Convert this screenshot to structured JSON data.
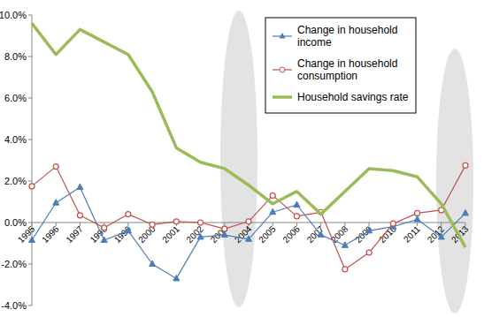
{
  "chart_data": {
    "type": "line",
    "categories": [
      "1995",
      "1996",
      "1997",
      "1998",
      "1999",
      "2000",
      "2001",
      "2002",
      "2003",
      "2004",
      "2005",
      "2006",
      "2007",
      "2008",
      "2009",
      "2010",
      "2011",
      "2012",
      "2013"
    ],
    "series": [
      {
        "name": "Change in household income",
        "color": "#4a7ebb",
        "marker": "triangle",
        "values": [
          -0.85,
          0.95,
          1.7,
          -0.85,
          -0.4,
          -2.0,
          -2.7,
          -0.7,
          -0.6,
          -0.8,
          0.5,
          0.85,
          -0.6,
          -1.1,
          -0.4,
          -0.2,
          0.15,
          -0.7,
          0.45
        ]
      },
      {
        "name": "Change in household consumption",
        "color": "#c0504d",
        "marker": "circle",
        "values": [
          1.75,
          2.7,
          0.35,
          -0.25,
          0.4,
          -0.1,
          0.05,
          0.0,
          -0.3,
          0.05,
          1.3,
          0.3,
          0.5,
          -2.25,
          -1.45,
          -0.05,
          0.45,
          0.6,
          2.75
        ]
      },
      {
        "name": "Household savings rate",
        "color": "#9bbb59",
        "marker": "none",
        "values": [
          9.6,
          8.1,
          9.3,
          8.7,
          8.1,
          6.3,
          3.6,
          2.9,
          2.6,
          1.8,
          0.9,
          1.5,
          0.4,
          1.5,
          2.6,
          2.5,
          2.2,
          0.9,
          -1.2
        ]
      }
    ],
    "ylim": [
      -4,
      10
    ],
    "yticks": [
      {
        "value": -4,
        "label": "-4.0%"
      },
      {
        "value": -2,
        "label": "-2.0%"
      },
      {
        "value": 0,
        "label": "0.0%"
      },
      {
        "value": 2,
        "label": "2.0%"
      },
      {
        "value": 4,
        "label": "4.0%"
      },
      {
        "value": 6,
        "label": "6.0%"
      },
      {
        "value": 8,
        "label": "8.0%"
      },
      {
        "value": 10,
        "label": "10.0%"
      }
    ],
    "grid": false,
    "legend": "top-right"
  }
}
